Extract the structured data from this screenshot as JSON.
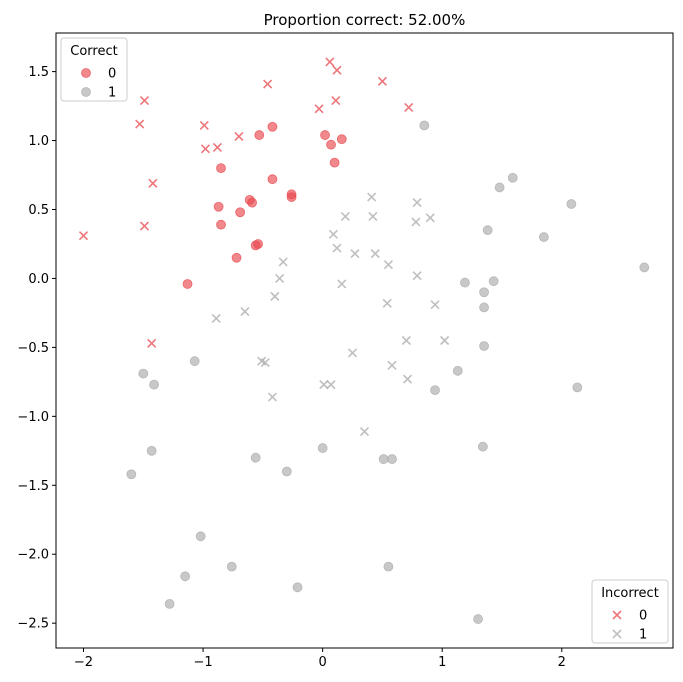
{
  "chart_data": {
    "type": "scatter",
    "title": "Proportion correct: 52.00%",
    "xlabel": "",
    "ylabel": "",
    "xlim": [
      -2.23,
      2.93
    ],
    "ylim": [
      -2.68,
      1.78
    ],
    "xticks": [
      -2,
      -1,
      0,
      1,
      2
    ],
    "yticks": [
      -2.5,
      -2.0,
      -1.5,
      -1.0,
      -0.5,
      0.0,
      0.5,
      1.0,
      1.5
    ],
    "grid": false,
    "colors": {
      "class0": "#e8484f",
      "class1": "#aaaaaa"
    },
    "legends": [
      {
        "title": "Correct",
        "placement": "top-left",
        "marker": "circle",
        "entries": [
          "0",
          "1"
        ]
      },
      {
        "title": "Incorrect",
        "placement": "bottom-right",
        "marker": "x",
        "entries": [
          "0",
          "1"
        ]
      }
    ],
    "series": [
      {
        "legend": "Correct",
        "label": "0",
        "marker": "circle",
        "color": "#e8484f",
        "points": [
          [
            0.02,
            1.04
          ],
          [
            0.07,
            0.97
          ],
          [
            0.16,
            1.01
          ],
          [
            0.1,
            0.84
          ],
          [
            -0.42,
            1.1
          ],
          [
            -0.53,
            1.04
          ],
          [
            -0.85,
            0.8
          ],
          [
            -0.42,
            0.72
          ],
          [
            -0.61,
            0.57
          ],
          [
            -0.59,
            0.55
          ],
          [
            -0.87,
            0.52
          ],
          [
            -0.69,
            0.48
          ],
          [
            -0.85,
            0.39
          ],
          [
            -0.26,
            0.61
          ],
          [
            -0.26,
            0.59
          ],
          [
            -0.56,
            0.24
          ],
          [
            -0.54,
            0.25
          ],
          [
            -0.72,
            0.15
          ],
          [
            -1.13,
            -0.04
          ]
        ]
      },
      {
        "legend": "Correct",
        "label": "1",
        "marker": "circle",
        "color": "#aaaaaa",
        "points": [
          [
            0.85,
            1.11
          ],
          [
            1.48,
            0.66
          ],
          [
            1.59,
            0.73
          ],
          [
            2.08,
            0.54
          ],
          [
            1.38,
            0.35
          ],
          [
            1.85,
            0.3
          ],
          [
            2.69,
            0.08
          ],
          [
            1.19,
            -0.03
          ],
          [
            1.43,
            -0.02
          ],
          [
            1.35,
            -0.1
          ],
          [
            1.35,
            -0.21
          ],
          [
            1.35,
            -0.49
          ],
          [
            1.13,
            -0.67
          ],
          [
            2.13,
            -0.79
          ],
          [
            0.94,
            -0.81
          ],
          [
            -1.07,
            -0.6
          ],
          [
            -1.5,
            -0.69
          ],
          [
            -1.41,
            -0.77
          ],
          [
            -1.43,
            -1.25
          ],
          [
            -1.6,
            -1.42
          ],
          [
            -0.56,
            -1.3
          ],
          [
            -0.3,
            -1.4
          ],
          [
            0.0,
            -1.23
          ],
          [
            0.51,
            -1.31
          ],
          [
            0.58,
            -1.31
          ],
          [
            1.34,
            -1.22
          ],
          [
            -1.02,
            -1.87
          ],
          [
            -0.76,
            -2.09
          ],
          [
            0.55,
            -2.09
          ],
          [
            -1.15,
            -2.16
          ],
          [
            -0.21,
            -2.24
          ],
          [
            -1.28,
            -2.36
          ],
          [
            1.3,
            -2.47
          ]
        ]
      },
      {
        "legend": "Incorrect",
        "label": "0",
        "marker": "x",
        "color": "#e8484f",
        "points": [
          [
            0.06,
            1.57
          ],
          [
            0.12,
            1.51
          ],
          [
            0.5,
            1.43
          ],
          [
            -0.46,
            1.41
          ],
          [
            -1.49,
            1.29
          ],
          [
            0.11,
            1.29
          ],
          [
            -0.03,
            1.23
          ],
          [
            0.72,
            1.24
          ],
          [
            -1.53,
            1.12
          ],
          [
            -0.99,
            1.11
          ],
          [
            -0.7,
            1.03
          ],
          [
            -0.98,
            0.94
          ],
          [
            -0.88,
            0.95
          ],
          [
            -1.42,
            0.69
          ],
          [
            -1.49,
            0.38
          ],
          [
            -2.0,
            0.31
          ],
          [
            -1.43,
            -0.47
          ]
        ]
      },
      {
        "legend": "Incorrect",
        "label": "1",
        "marker": "x",
        "color": "#aaaaaa",
        "points": [
          [
            0.41,
            0.59
          ],
          [
            0.79,
            0.55
          ],
          [
            0.19,
            0.45
          ],
          [
            0.42,
            0.45
          ],
          [
            0.9,
            0.44
          ],
          [
            0.78,
            0.41
          ],
          [
            0.09,
            0.32
          ],
          [
            0.12,
            0.22
          ],
          [
            0.27,
            0.18
          ],
          [
            0.44,
            0.18
          ],
          [
            0.55,
            0.1
          ],
          [
            -0.33,
            0.12
          ],
          [
            -0.36,
            0.0
          ],
          [
            0.79,
            0.02
          ],
          [
            0.16,
            -0.04
          ],
          [
            -0.4,
            -0.13
          ],
          [
            0.54,
            -0.18
          ],
          [
            0.94,
            -0.19
          ],
          [
            -0.65,
            -0.24
          ],
          [
            -0.89,
            -0.29
          ],
          [
            0.7,
            -0.45
          ],
          [
            1.02,
            -0.45
          ],
          [
            0.25,
            -0.54
          ],
          [
            -0.51,
            -0.6
          ],
          [
            -0.48,
            -0.61
          ],
          [
            0.58,
            -0.63
          ],
          [
            0.71,
            -0.73
          ],
          [
            0.01,
            -0.77
          ],
          [
            0.07,
            -0.77
          ],
          [
            -0.42,
            -0.86
          ],
          [
            0.35,
            -1.11
          ]
        ]
      }
    ]
  }
}
